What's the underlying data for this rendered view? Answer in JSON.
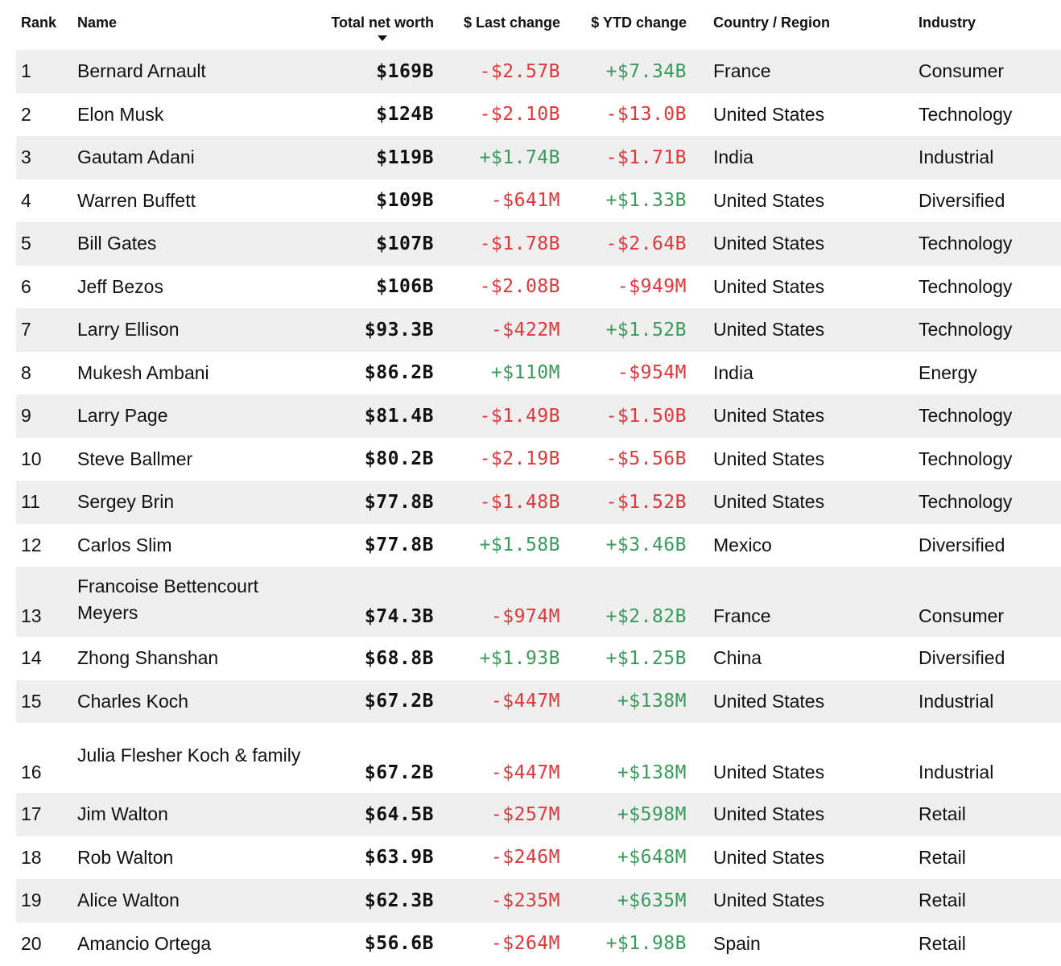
{
  "header": {
    "rank": "Rank",
    "name": "Name",
    "net_worth": "Total net worth",
    "last_change": "$ Last change",
    "ytd_change": "$ YTD change",
    "country": "Country / Region",
    "industry": "Industry"
  },
  "colors": {
    "negative": "#e0373a",
    "positive": "#3a9a5b",
    "stripe": "#efefef"
  },
  "rows": [
    {
      "rank": "1",
      "name": "Bernard Arnault",
      "net": "$169B",
      "last": "-$2.57B",
      "ytd": "+$7.34B",
      "country": "France",
      "industry": "Consumer"
    },
    {
      "rank": "2",
      "name": "Elon Musk",
      "net": "$124B",
      "last": "-$2.10B",
      "ytd": "-$13.0B",
      "country": "United States",
      "industry": "Technology"
    },
    {
      "rank": "3",
      "name": "Gautam Adani",
      "net": "$119B",
      "last": "+$1.74B",
      "ytd": "-$1.71B",
      "country": "India",
      "industry": "Industrial"
    },
    {
      "rank": "4",
      "name": "Warren Buffett",
      "net": "$109B",
      "last": "-$641M",
      "ytd": "+$1.33B",
      "country": "United States",
      "industry": "Diversified"
    },
    {
      "rank": "5",
      "name": "Bill Gates",
      "net": "$107B",
      "last": "-$1.78B",
      "ytd": "-$2.64B",
      "country": "United States",
      "industry": "Technology"
    },
    {
      "rank": "6",
      "name": "Jeff Bezos",
      "net": "$106B",
      "last": "-$2.08B",
      "ytd": "-$949M",
      "country": "United States",
      "industry": "Technology"
    },
    {
      "rank": "7",
      "name": "Larry Ellison",
      "net": "$93.3B",
      "last": "-$422M",
      "ytd": "+$1.52B",
      "country": "United States",
      "industry": "Technology"
    },
    {
      "rank": "8",
      "name": "Mukesh Ambani",
      "net": "$86.2B",
      "last": "+$110M",
      "ytd": "-$954M",
      "country": "India",
      "industry": "Energy"
    },
    {
      "rank": "9",
      "name": "Larry Page",
      "net": "$81.4B",
      "last": "-$1.49B",
      "ytd": "-$1.50B",
      "country": "United States",
      "industry": "Technology"
    },
    {
      "rank": "10",
      "name": "Steve Ballmer",
      "net": "$80.2B",
      "last": "-$2.19B",
      "ytd": "-$5.56B",
      "country": "United States",
      "industry": "Technology"
    },
    {
      "rank": "11",
      "name": "Sergey Brin",
      "net": "$77.8B",
      "last": "-$1.48B",
      "ytd": "-$1.52B",
      "country": "United States",
      "industry": "Technology"
    },
    {
      "rank": "12",
      "name": "Carlos Slim",
      "net": "$77.8B",
      "last": "+$1.58B",
      "ytd": "+$3.46B",
      "country": "Mexico",
      "industry": "Diversified"
    },
    {
      "rank": "13",
      "name": "Francoise Bettencourt Meyers",
      "net": "$74.3B",
      "last": "-$974M",
      "ytd": "+$2.82B",
      "country": "France",
      "industry": "Consumer"
    },
    {
      "rank": "14",
      "name": "Zhong Shanshan",
      "net": "$68.8B",
      "last": "+$1.93B",
      "ytd": "+$1.25B",
      "country": "China",
      "industry": "Diversified"
    },
    {
      "rank": "15",
      "name": "Charles Koch",
      "net": "$67.2B",
      "last": "-$447M",
      "ytd": "+$138M",
      "country": "United States",
      "industry": "Industrial"
    },
    {
      "rank": "16",
      "name": "Julia Flesher Koch & family",
      "net": "$67.2B",
      "last": "-$447M",
      "ytd": "+$138M",
      "country": "United States",
      "industry": "Industrial"
    },
    {
      "rank": "17",
      "name": "Jim Walton",
      "net": "$64.5B",
      "last": "-$257M",
      "ytd": "+$598M",
      "country": "United States",
      "industry": "Retail"
    },
    {
      "rank": "18",
      "name": "Rob Walton",
      "net": "$63.9B",
      "last": "-$246M",
      "ytd": "+$648M",
      "country": "United States",
      "industry": "Retail"
    },
    {
      "rank": "19",
      "name": "Alice Walton",
      "net": "$62.3B",
      "last": "-$235M",
      "ytd": "+$635M",
      "country": "United States",
      "industry": "Retail"
    },
    {
      "rank": "20",
      "name": "Amancio Ortega",
      "net": "$56.6B",
      "last": "-$264M",
      "ytd": "+$1.98B",
      "country": "Spain",
      "industry": "Retail"
    }
  ]
}
